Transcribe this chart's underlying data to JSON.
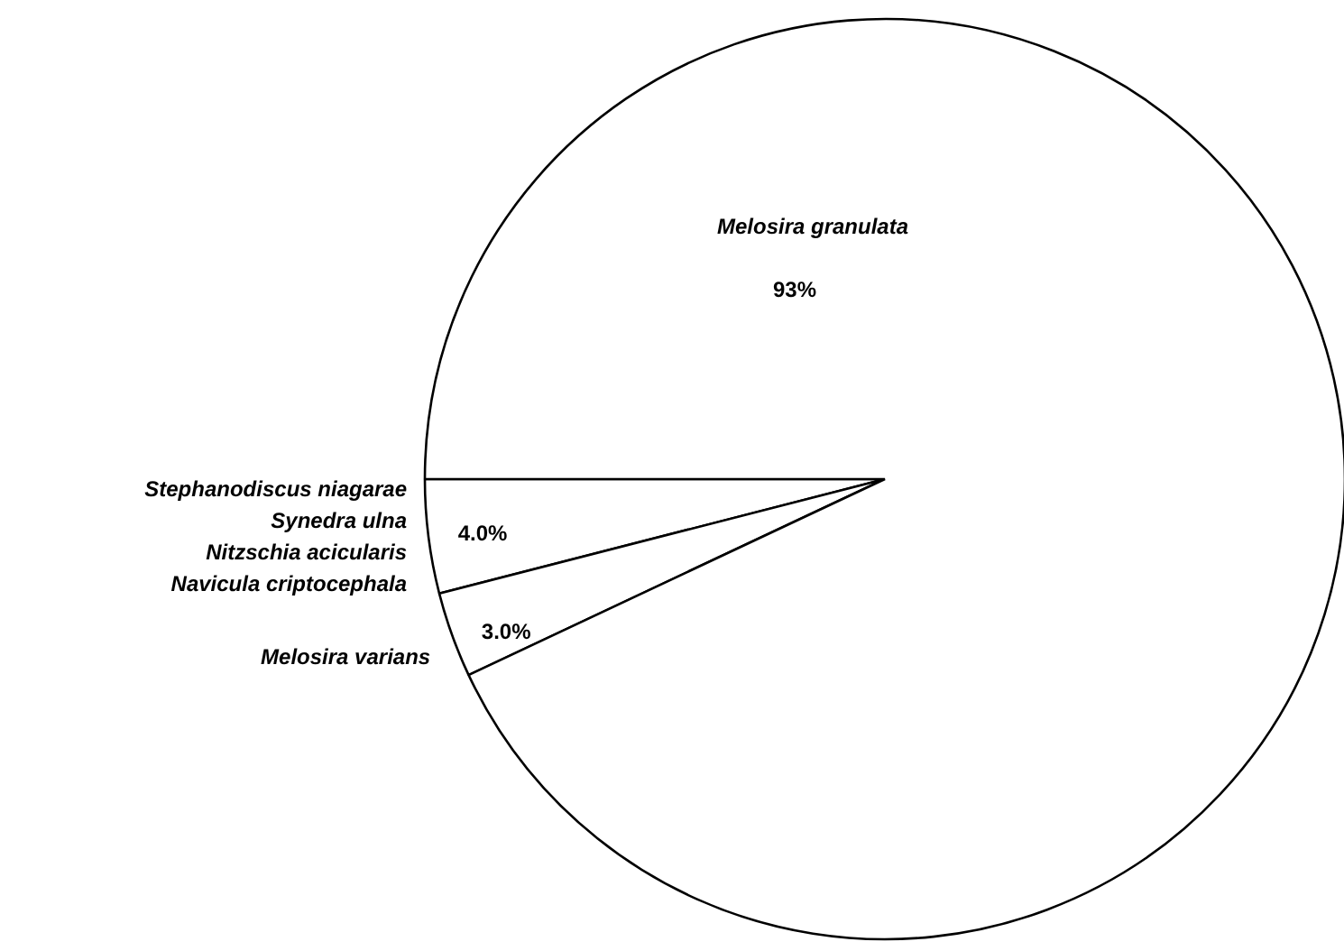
{
  "chart_data": {
    "type": "pie",
    "categories": [
      "Stephanodiscus niagarae\nSynedra ulna\nNitzschia acicularis\nNavicula criptocephala",
      "Melosira varians",
      "Melosira granulata"
    ],
    "values": [
      4.0,
      3.0,
      93
    ],
    "value_labels": [
      "4.0%",
      "3.0%",
      "93%"
    ],
    "colors": [
      "#ffffff",
      "#ffffff",
      "#ffffff"
    ]
  }
}
